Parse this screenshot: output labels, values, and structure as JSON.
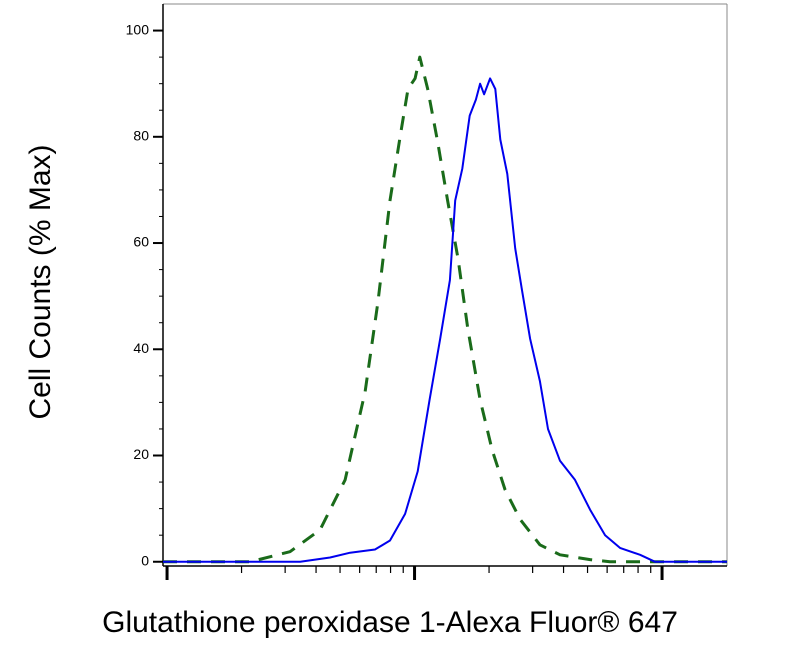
{
  "chart_data": {
    "type": "line",
    "x_label": "Glutathione peroxidase 1-Alexa Fluor® 647",
    "y_label": "Cell Counts (% Max)",
    "log_x": true,
    "xlim": [
      0.963,
      183
    ],
    "xticks": [
      1,
      10,
      100
    ],
    "ylim": [
      -0.8,
      105
    ],
    "yticks": [
      0,
      20,
      40,
      60,
      80,
      100
    ],
    "grid": false,
    "series": [
      {
        "color": "#1a6b1a",
        "dashed": true,
        "x": [
          0.963,
          2.165,
          3.14,
          4.15,
          5.24,
          6.31,
          7.12,
          7.96,
          8.74,
          9.41,
          10.05,
          10.5,
          11.3,
          12.4,
          13.6,
          15.0,
          16.4,
          18.4,
          20.6,
          23.2,
          26.7,
          32.1,
          38.7,
          51.2,
          61.6,
          183
        ],
        "values": [
          0,
          0,
          1.9,
          6,
          15.4,
          32,
          49,
          68,
          80,
          89,
          91,
          95,
          89,
          79,
          68,
          57,
          44,
          30.5,
          21,
          13.6,
          8,
          3.2,
          1.3,
          0.4,
          0,
          0
        ]
      },
      {
        "color": "#0000ee",
        "dashed": false,
        "x": [
          0.963,
          3.45,
          4.56,
          5.49,
          6.92,
          7.96,
          9.16,
          10.3,
          11.5,
          12.7,
          13.9,
          14.6,
          15.6,
          16.7,
          17.7,
          18.4,
          19.1,
          20.2,
          21.2,
          22.2,
          23.7,
          25.5,
          27.2,
          29.3,
          32.1,
          34.6,
          38.7,
          44.5,
          51.2,
          58.9,
          67.6,
          81.5,
          93.7,
          183
        ],
        "values": [
          0,
          0,
          0.8,
          1.7,
          2.3,
          4,
          9,
          17,
          30.5,
          42,
          53,
          68,
          74,
          84,
          87,
          90,
          88,
          91,
          89,
          79.5,
          73,
          59,
          51,
          42,
          34,
          25,
          19,
          15.4,
          9.8,
          5,
          2.6,
          1.3,
          0,
          0
        ]
      }
    ]
  }
}
